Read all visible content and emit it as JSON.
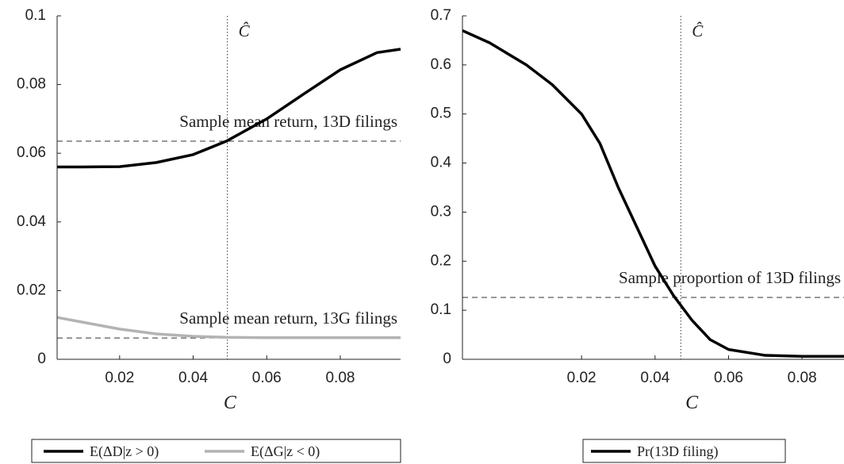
{
  "chart_data": [
    {
      "type": "line",
      "xlabel": "C",
      "x": [
        0.003,
        0.01,
        0.02,
        0.03,
        0.04,
        0.049,
        0.06,
        0.07,
        0.08,
        0.09,
        0.0964
      ],
      "series": [
        {
          "name": "E(ΔD|z > 0)",
          "color": "#000000",
          "values": [
            0.056,
            0.056,
            0.0561,
            0.0573,
            0.0596,
            0.0635,
            0.07,
            0.0772,
            0.0843,
            0.0893,
            0.0903
          ]
        },
        {
          "name": "E(ΔG|z < 0)",
          "color": "#b3b3b3",
          "values": [
            0.0122,
            0.0108,
            0.0088,
            0.0074,
            0.0067,
            0.0064,
            0.0063,
            0.0063,
            0.0063,
            0.0063,
            0.0063
          ]
        }
      ],
      "xlim": [
        0.003,
        0.0964
      ],
      "xticks": [
        0.02,
        0.04,
        0.06,
        0.08
      ],
      "ylim": [
        0,
        0.1
      ],
      "yticks": [
        0,
        0.02,
        0.04,
        0.06,
        0.08,
        0.1
      ],
      "hlines": [
        {
          "value": 0.0635,
          "label": "Sample mean return, 13D filings"
        },
        {
          "value": 0.0062,
          "label": "Sample mean return, 13G filings"
        }
      ],
      "vline": {
        "value": 0.0493,
        "label": "Ĉ"
      },
      "legend": "bottom"
    },
    {
      "type": "line",
      "xlabel": "C",
      "x": [
        -0.0124,
        -0.005,
        0.005,
        0.012,
        0.02,
        0.025,
        0.03,
        0.035,
        0.04,
        0.045,
        0.05,
        0.055,
        0.06,
        0.07,
        0.08,
        0.0914
      ],
      "series": [
        {
          "name": "Pr(13D filing)",
          "color": "#000000",
          "values": [
            0.67,
            0.645,
            0.6,
            0.56,
            0.5,
            0.44,
            0.35,
            0.27,
            0.19,
            0.13,
            0.08,
            0.04,
            0.02,
            0.008,
            0.006,
            0.006
          ]
        }
      ],
      "xlim": [
        -0.0124,
        0.0914
      ],
      "xticks": [
        0.02,
        0.04,
        0.06,
        0.08
      ],
      "ylim": [
        0,
        0.7
      ],
      "yticks": [
        0,
        0.1,
        0.2,
        0.3,
        0.4,
        0.5,
        0.6,
        0.7
      ],
      "hlines": [
        {
          "value": 0.126,
          "label": "Sample proportion of 13D filings"
        }
      ],
      "vline": {
        "value": 0.047,
        "label": "Ĉ"
      },
      "legend": "bottom"
    }
  ]
}
